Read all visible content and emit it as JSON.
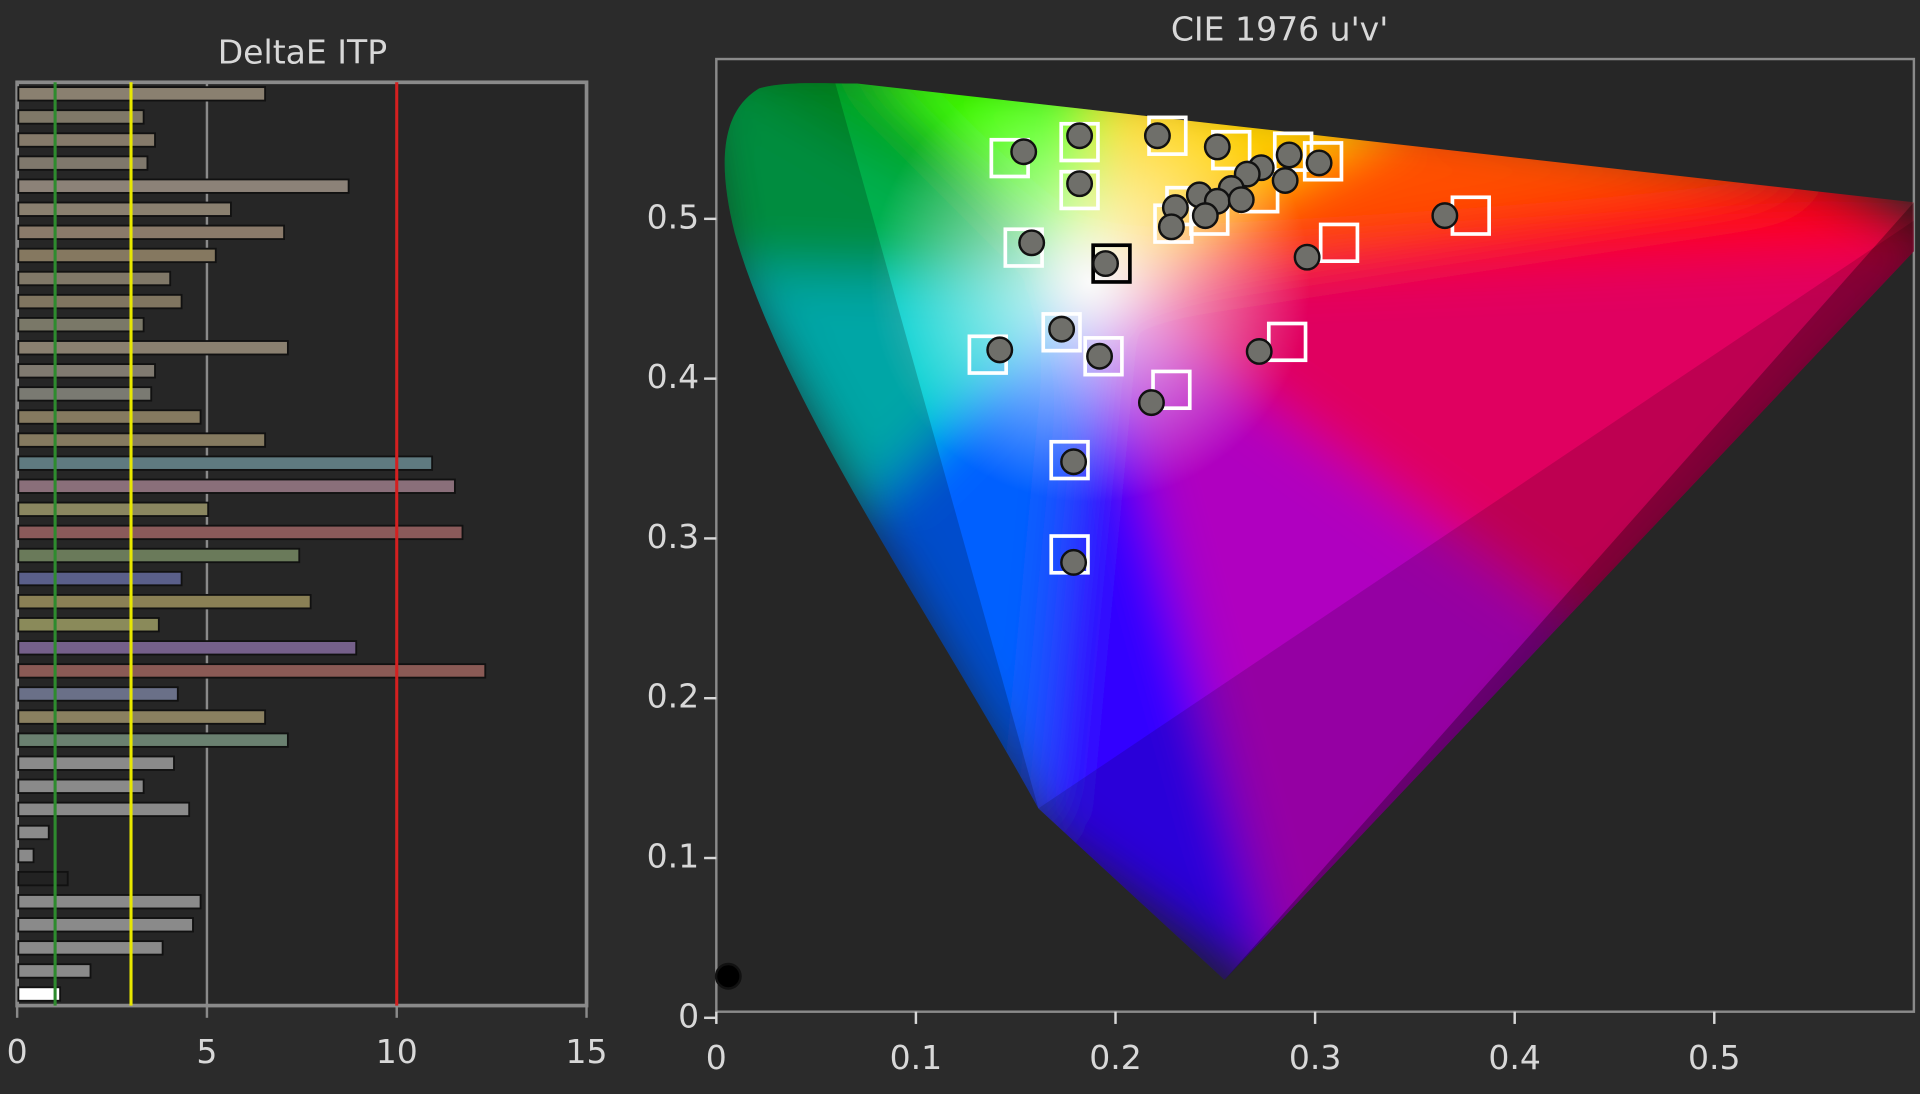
{
  "chart_data": [
    {
      "type": "hbar",
      "title": "DeltaE ITP",
      "values": [
        6.5,
        3.3,
        3.6,
        3.4,
        8.7,
        5.6,
        7.0,
        5.2,
        4.0,
        4.3,
        3.3,
        7.1,
        3.6,
        3.5,
        4.8,
        6.5,
        10.9,
        11.5,
        5.0,
        11.7,
        7.4,
        4.3,
        7.7,
        3.7,
        8.9,
        12.3,
        4.2,
        6.5,
        7.1,
        4.1,
        3.3,
        4.5,
        0.8,
        0.4,
        1.3,
        4.8,
        4.6,
        3.8,
        1.9,
        1.1
      ],
      "colors": [
        "#8a8070",
        "#7f7868",
        "#857a6a",
        "#7f786c",
        "#8c8278",
        "#8a8070",
        "#8a7a6a",
        "#857860",
        "#807868",
        "#807560",
        "#7a7868",
        "#8a8070",
        "#807a70",
        "#7a7a72",
        "#857a60",
        "#857a60",
        "#5f7a80",
        "#8a6f7a",
        "#8a8660",
        "#8a5a5a",
        "#6a7a5a",
        "#5a5f8a",
        "#8a8055",
        "#8a8a5a",
        "#75608a",
        "#8a5a55",
        "#6a7088",
        "#8a8060",
        "#6a8070",
        "#8a8a8a",
        "#8a8a8a",
        "#8a8a8a",
        "#8a8a8a",
        "#8a8a8a",
        "#222222",
        "#8a8a8a",
        "#8a8a8a",
        "#8a8a8a",
        "#8a8a8a",
        "#ffffff"
      ],
      "xlim": [
        0,
        15
      ],
      "xticks": [
        0,
        5,
        10,
        15
      ],
      "grid": true,
      "reference_lines": [
        {
          "value": 1,
          "color": "#2e8b2e"
        },
        {
          "value": 3,
          "color": "#e8e800"
        },
        {
          "value": 10,
          "color": "#d42020"
        }
      ]
    },
    {
      "type": "scatter",
      "title": "CIE 1976 u'v'",
      "xlim": [
        0,
        0.6
      ],
      "ylim": [
        0,
        0.6
      ],
      "xticks": [
        0,
        0.1,
        0.2,
        0.3,
        0.4,
        0.5
      ],
      "yticks": [
        0,
        0.1,
        0.2,
        0.3,
        0.4,
        0.5
      ],
      "series": [
        {
          "marker": "square",
          "color": "#ffffff",
          "x": [
            0.147,
            0.182,
            0.226,
            0.258,
            0.289,
            0.304,
            0.182,
            0.272,
            0.235,
            0.247,
            0.229,
            0.378,
            0.312,
            0.154,
            0.173,
            0.286,
            0.136,
            0.194,
            0.228,
            0.177,
            0.177
          ],
          "y": [
            0.538,
            0.548,
            0.552,
            0.543,
            0.542,
            0.536,
            0.518,
            0.516,
            0.508,
            0.502,
            0.497,
            0.502,
            0.485,
            0.482,
            0.429,
            0.423,
            0.415,
            0.414,
            0.393,
            0.349,
            0.29
          ]
        },
        {
          "marker": "square",
          "color": "#000000",
          "x": [
            0.198
          ],
          "y": [
            0.472
          ]
        },
        {
          "marker": "circle",
          "color": "#6f6f6a",
          "x": [
            0.154,
            0.182,
            0.221,
            0.251,
            0.287,
            0.302,
            0.273,
            0.266,
            0.285,
            0.182,
            0.258,
            0.242,
            0.251,
            0.263,
            0.23,
            0.245,
            0.228,
            0.365,
            0.158,
            0.296,
            0.195,
            0.173,
            0.272,
            0.142,
            0.192,
            0.218,
            0.179,
            0.179
          ],
          "y": [
            0.542,
            0.552,
            0.552,
            0.545,
            0.54,
            0.535,
            0.532,
            0.528,
            0.524,
            0.522,
            0.519,
            0.515,
            0.511,
            0.512,
            0.507,
            0.502,
            0.495,
            0.502,
            0.485,
            0.476,
            0.472,
            0.431,
            0.417,
            0.418,
            0.414,
            0.385,
            0.348,
            0.285
          ]
        },
        {
          "marker": "circle",
          "color": "#000000",
          "x": [
            0.006
          ],
          "y": [
            0.026
          ]
        }
      ]
    }
  ]
}
